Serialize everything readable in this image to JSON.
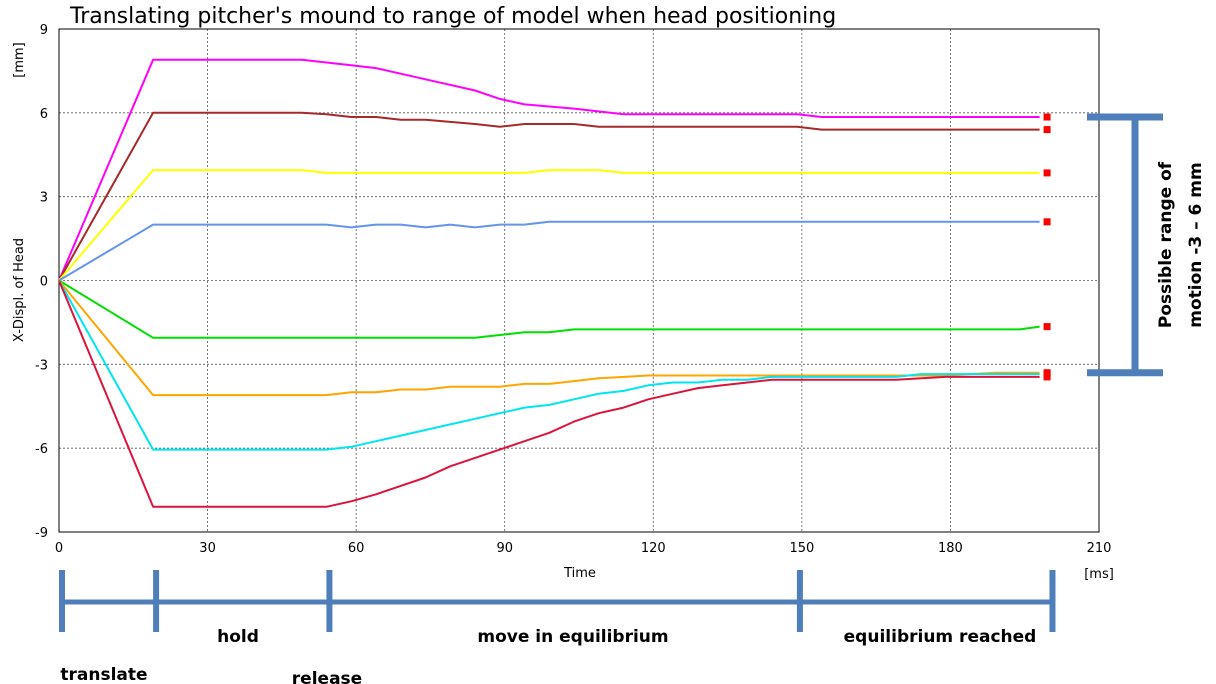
{
  "title": "Translating pitcher's mound to range of model when head positioning",
  "chart_data": {
    "type": "line",
    "xlabel": "Time",
    "xunit": "[ms]",
    "ylabel": "X-Displ. of Head",
    "yunit": "[mm]",
    "xlim": [
      0,
      210
    ],
    "ylim": [
      -9,
      9
    ],
    "xticks": [
      0,
      30,
      60,
      90,
      120,
      150,
      180,
      210
    ],
    "yticks": [
      -9,
      -6,
      -3,
      0,
      3,
      6,
      9
    ],
    "ytick_labels": [
      "-9",
      "-6",
      "-3",
      "0",
      "3",
      "6",
      "9"
    ],
    "grid": true,
    "series": [
      {
        "color": "#ff00ff",
        "x": [
          0,
          19,
          34,
          49,
          59,
          64,
          74,
          84,
          89,
          94,
          104,
          114,
          124,
          134,
          144,
          149,
          154,
          164,
          174,
          184,
          194,
          198
        ],
        "y": [
          0,
          7.9,
          7.9,
          7.9,
          7.7,
          7.6,
          7.2,
          6.8,
          6.5,
          6.3,
          6.15,
          5.95,
          5.95,
          5.95,
          5.95,
          5.95,
          5.85,
          5.85,
          5.85,
          5.85,
          5.85,
          5.85
        ]
      },
      {
        "color": "#a52a2a",
        "x": [
          0,
          19,
          34,
          49,
          54,
          59,
          64,
          69,
          74,
          84,
          89,
          94,
          99,
          104,
          109,
          114,
          124,
          134,
          144,
          149,
          154,
          164,
          174,
          184,
          194,
          198
        ],
        "y": [
          0,
          6,
          6,
          6,
          5.95,
          5.85,
          5.85,
          5.75,
          5.75,
          5.6,
          5.5,
          5.6,
          5.6,
          5.6,
          5.5,
          5.5,
          5.5,
          5.5,
          5.5,
          5.5,
          5.4,
          5.4,
          5.4,
          5.4,
          5.4,
          5.4
        ]
      },
      {
        "color": "#ffff00",
        "x": [
          0,
          19,
          34,
          49,
          54,
          59,
          69,
          79,
          89,
          94,
          99,
          109,
          114,
          124,
          134,
          144,
          154,
          164,
          174,
          184,
          194,
          198
        ],
        "y": [
          0,
          3.95,
          3.95,
          3.95,
          3.85,
          3.85,
          3.85,
          3.85,
          3.85,
          3.85,
          3.95,
          3.95,
          3.85,
          3.85,
          3.85,
          3.85,
          3.85,
          3.85,
          3.85,
          3.85,
          3.85,
          3.85
        ]
      },
      {
        "color": "#6495ed",
        "x": [
          0,
          19,
          34,
          49,
          54,
          59,
          64,
          69,
          74,
          79,
          84,
          89,
          94,
          99,
          109,
          119,
          129,
          139,
          149,
          159,
          169,
          179,
          189,
          198
        ],
        "y": [
          0,
          2,
          2,
          2,
          2,
          1.9,
          2,
          2,
          1.9,
          2,
          1.9,
          2,
          2,
          2.1,
          2.1,
          2.1,
          2.1,
          2.1,
          2.1,
          2.1,
          2.1,
          2.1,
          2.1,
          2.1
        ]
      },
      {
        "color": "#00e000",
        "x": [
          0,
          19,
          34,
          49,
          59,
          69,
          79,
          84,
          89,
          94,
          99,
          104,
          109,
          119,
          129,
          139,
          149,
          159,
          169,
          179,
          189,
          194,
          198
        ],
        "y": [
          0,
          -2.05,
          -2.05,
          -2.05,
          -2.05,
          -2.05,
          -2.05,
          -2.05,
          -1.95,
          -1.85,
          -1.85,
          -1.75,
          -1.75,
          -1.75,
          -1.75,
          -1.75,
          -1.75,
          -1.75,
          -1.75,
          -1.75,
          -1.75,
          -1.75,
          -1.65
        ]
      },
      {
        "color": "#ffa500",
        "x": [
          0,
          19,
          34,
          49,
          54,
          59,
          64,
          69,
          74,
          79,
          84,
          89,
          94,
          99,
          104,
          109,
          119,
          129,
          139,
          149,
          159,
          169,
          179,
          189,
          198
        ],
        "y": [
          0,
          -4.1,
          -4.1,
          -4.1,
          -4.1,
          -4,
          -4,
          -3.9,
          -3.9,
          -3.8,
          -3.8,
          -3.8,
          -3.7,
          -3.7,
          -3.6,
          -3.5,
          -3.4,
          -3.4,
          -3.4,
          -3.4,
          -3.4,
          -3.4,
          -3.4,
          -3.3,
          -3.3
        ]
      },
      {
        "color": "#00e5ee",
        "x": [
          0,
          19,
          34,
          49,
          54,
          59,
          64,
          69,
          74,
          79,
          84,
          89,
          94,
          99,
          104,
          109,
          114,
          119,
          124,
          129,
          134,
          139,
          144,
          149,
          159,
          169,
          174,
          179,
          189,
          198
        ],
        "y": [
          0,
          -6.05,
          -6.05,
          -6.05,
          -6.05,
          -5.95,
          -5.75,
          -5.55,
          -5.35,
          -5.15,
          -4.95,
          -4.75,
          -4.55,
          -4.45,
          -4.25,
          -4.05,
          -3.95,
          -3.75,
          -3.65,
          -3.65,
          -3.55,
          -3.55,
          -3.45,
          -3.45,
          -3.45,
          -3.45,
          -3.35,
          -3.35,
          -3.35,
          -3.35
        ]
      },
      {
        "color": "#dc143c",
        "x": [
          0,
          19,
          34,
          49,
          54,
          59,
          64,
          69,
          74,
          79,
          84,
          89,
          94,
          99,
          104,
          109,
          114,
          119,
          124,
          129,
          134,
          139,
          144,
          149,
          159,
          169,
          179,
          189,
          198
        ],
        "y": [
          0,
          -8.1,
          -8.1,
          -8.1,
          -8.1,
          -7.9,
          -7.65,
          -7.35,
          -7.05,
          -6.65,
          -6.35,
          -6.05,
          -5.75,
          -5.45,
          -5.05,
          -4.75,
          -4.55,
          -4.25,
          -4.05,
          -3.85,
          -3.75,
          -3.65,
          -3.55,
          -3.55,
          -3.55,
          -3.55,
          -3.45,
          -3.45,
          -3.45
        ]
      }
    ]
  },
  "range_annotation": {
    "line1": "Possible range of",
    "line2": "motion -3 – 6 mm",
    "bracket_color": "#4f7fba"
  },
  "timeline": {
    "color": "#4f7fba",
    "ticks_ms": [
      0,
      19,
      54,
      149,
      200
    ],
    "labels": [
      {
        "text": "translate"
      },
      {
        "text": "hold"
      },
      {
        "text": "release"
      },
      {
        "text": "move in equilibrium"
      },
      {
        "text": "equilibrium reached"
      }
    ]
  }
}
